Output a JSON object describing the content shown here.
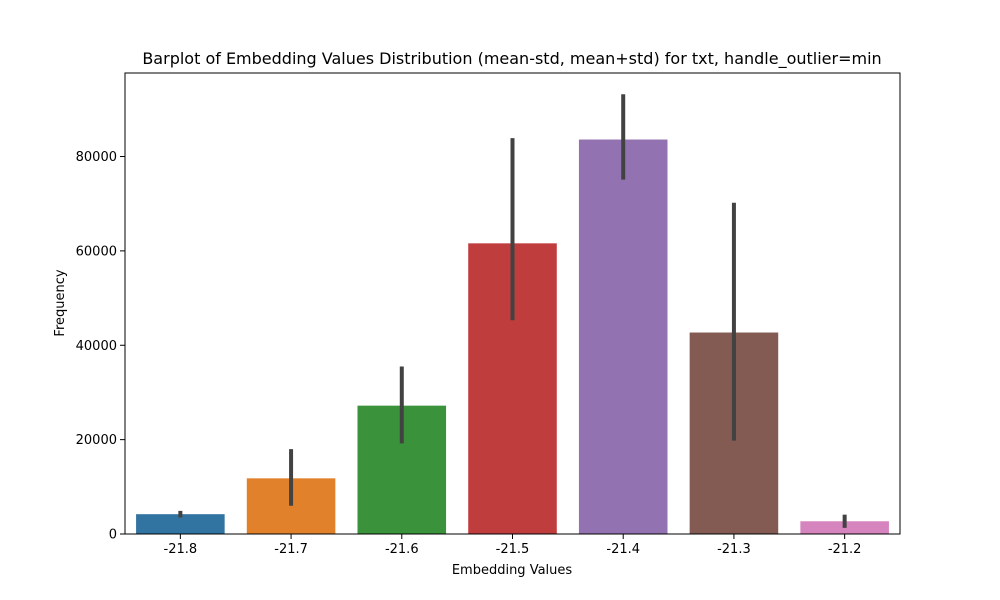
{
  "chart_data": {
    "type": "bar",
    "title": "Barplot of Embedding Values Distribution (mean-std, mean+std) for txt, handle_outlier=min",
    "xlabel": "Embedding Values",
    "ylabel": "Frequency",
    "categories": [
      "-21.8",
      "-21.7",
      "-21.6",
      "-21.5",
      "-21.4",
      "-21.3",
      "-21.2"
    ],
    "values": [
      4200,
      11800,
      27200,
      61600,
      83600,
      42700,
      2700
    ],
    "error_low": [
      3500,
      6000,
      19200,
      45300,
      75100,
      19800,
      1300
    ],
    "error_high": [
      4900,
      18000,
      35500,
      83900,
      93200,
      70200,
      4100
    ],
    "colors": [
      "#3274a1",
      "#e1812c",
      "#3a923a",
      "#c03d3e",
      "#9372b2",
      "#845b53",
      "#d684bd"
    ],
    "error_color": "#424242",
    "ylim": [
      0,
      97700
    ],
    "yticks": [
      0,
      20000,
      40000,
      60000,
      80000
    ],
    "ytick_labels": [
      "0",
      "20000",
      "40000",
      "60000",
      "80000"
    ],
    "grid": false,
    "legend": "none"
  }
}
